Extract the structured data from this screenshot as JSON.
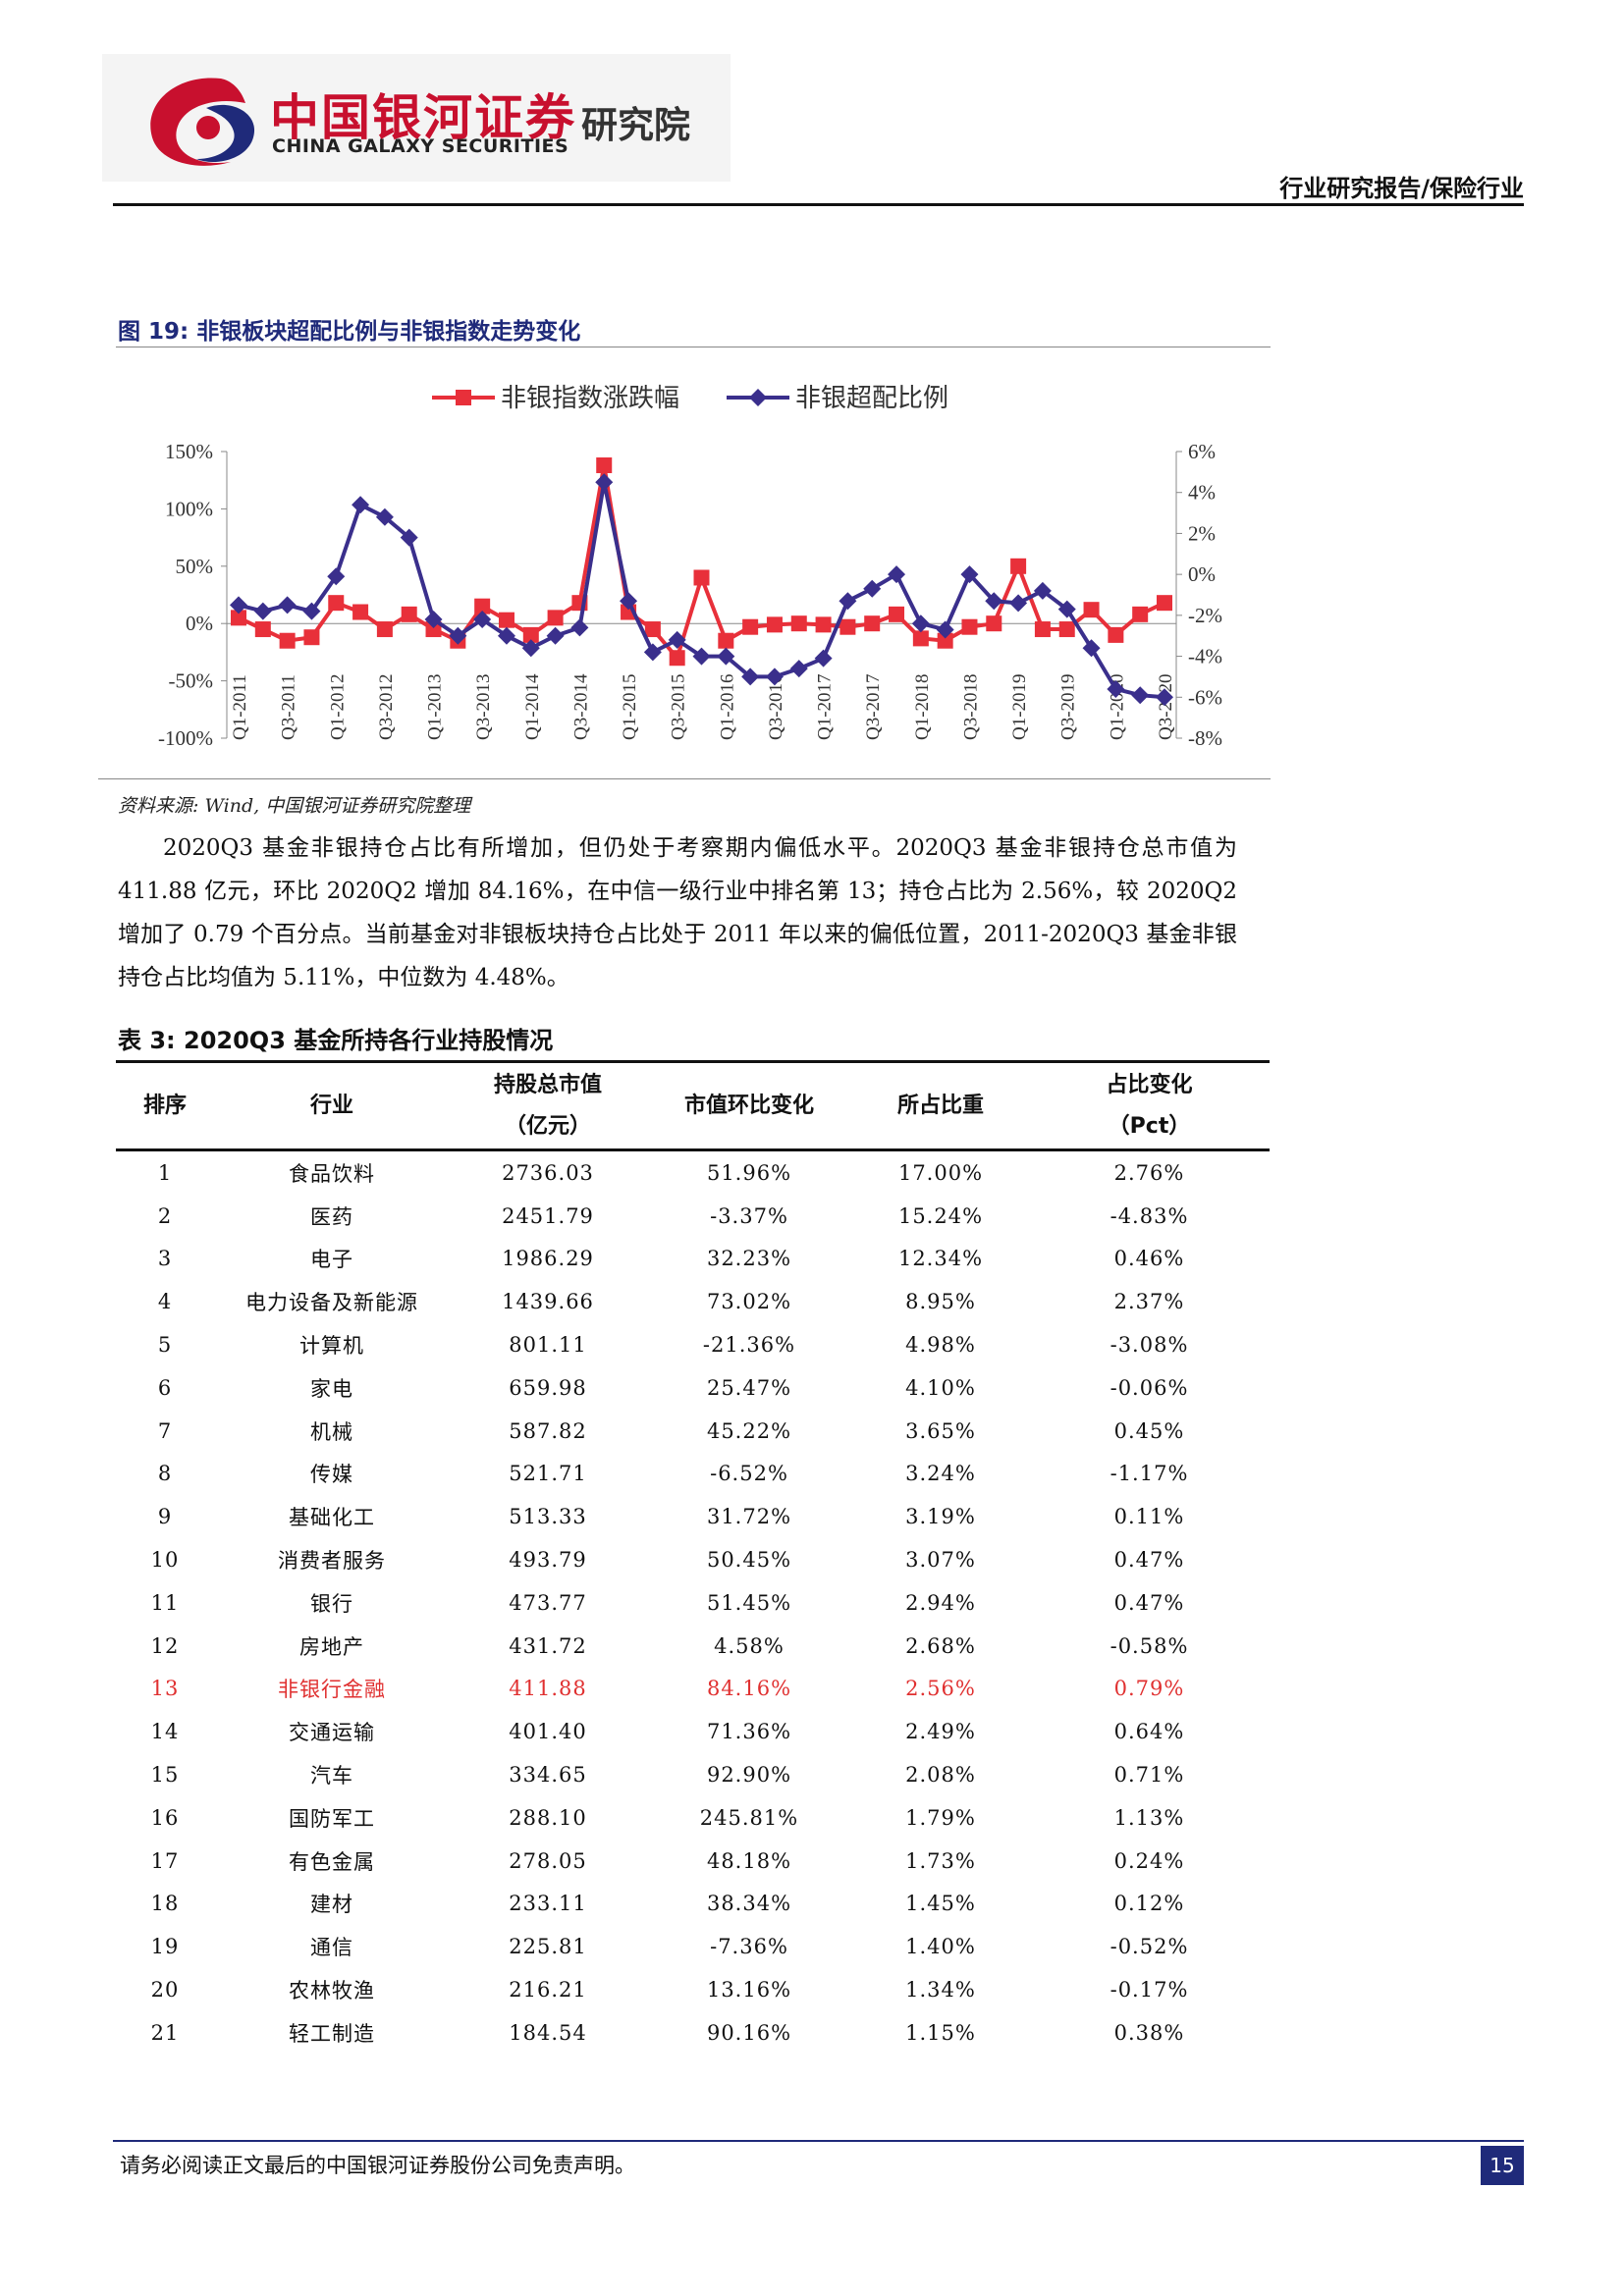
{
  "header": {
    "brand_cn": "中国银河证券",
    "brand_en": "CHINA GALAXY SECURITIES",
    "institute": "研究院",
    "report_type": "行业研究报告/保险行业"
  },
  "figure": {
    "title": "图 19: 非银板块超配比例与非银指数走势变化",
    "source": "资料来源: Wind, 中国银河证券研究院整理"
  },
  "chart_data": {
    "type": "line",
    "categories": [
      "Q1-2011",
      "Q2-2011",
      "Q3-2011",
      "Q4-2011",
      "Q1-2012",
      "Q2-2012",
      "Q3-2012",
      "Q4-2012",
      "Q1-2013",
      "Q2-2013",
      "Q3-2013",
      "Q4-2013",
      "Q1-2014",
      "Q2-2014",
      "Q3-2014",
      "Q4-2014",
      "Q1-2015",
      "Q2-2015",
      "Q3-2015",
      "Q4-2015",
      "Q1-2016",
      "Q2-2016",
      "Q3-2016",
      "Q4-2016",
      "Q1-2017",
      "Q2-2017",
      "Q3-2017",
      "Q4-2017",
      "Q1-2018",
      "Q2-2018",
      "Q3-2018",
      "Q4-2018",
      "Q1-2019",
      "Q2-2019",
      "Q3-2019",
      "Q4-2019",
      "Q1-2020",
      "Q2-2020",
      "Q3-2020"
    ],
    "x_tick_labels": [
      "Q1-2011",
      "Q3-2011",
      "Q1-2012",
      "Q3-2012",
      "Q1-2013",
      "Q3-2013",
      "Q1-2014",
      "Q3-2014",
      "Q1-2015",
      "Q3-2015",
      "Q1-2016",
      "Q3-2016",
      "Q1-2017",
      "Q3-2017",
      "Q1-2018",
      "Q3-2018",
      "Q1-2019",
      "Q3-2019",
      "Q1-2020",
      "Q3-2020"
    ],
    "series": [
      {
        "name": "非银指数涨跌幅",
        "axis": "left",
        "color": "#e8303a",
        "marker": "square",
        "values": [
          5,
          -5,
          -15,
          -12,
          18,
          10,
          -5,
          8,
          -5,
          -15,
          15,
          3,
          -10,
          5,
          18,
          138,
          10,
          -5,
          -30,
          40,
          -15,
          -3,
          -1,
          0,
          -1,
          -3,
          0,
          8,
          -13,
          -15,
          -3,
          0,
          50,
          -5,
          -5,
          12,
          -10,
          8,
          18
        ]
      },
      {
        "name": "非银超配比例",
        "axis": "right",
        "color": "#3a2f8c",
        "marker": "diamond",
        "values": [
          -1.5,
          -1.8,
          -1.5,
          -1.8,
          -0.1,
          3.4,
          2.8,
          1.8,
          -2.2,
          -3.0,
          -2.2,
          -3.0,
          -3.6,
          -3.0,
          -2.6,
          4.5,
          -1.3,
          -3.8,
          -3.2,
          -4.0,
          -4.0,
          -5.0,
          -5.0,
          -4.6,
          -4.1,
          -1.3,
          -0.7,
          0.0,
          -2.4,
          -2.7,
          0.0,
          -1.3,
          -1.4,
          -0.8,
          -1.7,
          -3.6,
          -5.6,
          -5.9,
          -6.0
        ]
      }
    ],
    "y_left": {
      "min": -100,
      "max": 150,
      "ticks": [
        "150%",
        "100%",
        "50%",
        "0%",
        "-50%",
        "-100%"
      ]
    },
    "y_right": {
      "min": -8,
      "max": 6,
      "ticks": [
        "6%",
        "4%",
        "2%",
        "0%",
        "-2%",
        "-4%",
        "-6%",
        "-8%"
      ]
    },
    "legend_position": "top-center",
    "grid": false
  },
  "paragraph": "2020Q3 基金非银持仓占比有所增加，但仍处于考察期内偏低水平。2020Q3 基金非银持仓总市值为 411.88 亿元，环比 2020Q2 增加 84.16%，在中信一级行业中排名第 13；持仓占比为 2.56%，较 2020Q2 增加了 0.79 个百分点。当前基金对非银板块持仓占比处于 2011 年以来的偏低位置，2011-2020Q3 基金非银持仓占比均值为 5.11%，中位数为 4.48%。",
  "table": {
    "title": "表 3: 2020Q3 基金所持各行业持股情况",
    "headers": {
      "rank": "排序",
      "industry": "行业",
      "mv_1": "持股总市值",
      "mv_2": "（亿元）",
      "qoq": "市值环比变化",
      "weight": "所占比重",
      "chg_1": "占比变化",
      "chg_2": "（Pct）"
    },
    "rows": [
      [
        "1",
        "食品饮料",
        "2736.03",
        "51.96%",
        "17.00%",
        "2.76%"
      ],
      [
        "2",
        "医药",
        "2451.79",
        "-3.37%",
        "15.24%",
        "-4.83%"
      ],
      [
        "3",
        "电子",
        "1986.29",
        "32.23%",
        "12.34%",
        "0.46%"
      ],
      [
        "4",
        "电力设备及新能源",
        "1439.66",
        "73.02%",
        "8.95%",
        "2.37%"
      ],
      [
        "5",
        "计算机",
        "801.11",
        "-21.36%",
        "4.98%",
        "-3.08%"
      ],
      [
        "6",
        "家电",
        "659.98",
        "25.47%",
        "4.10%",
        "-0.06%"
      ],
      [
        "7",
        "机械",
        "587.82",
        "45.22%",
        "3.65%",
        "0.45%"
      ],
      [
        "8",
        "传媒",
        "521.71",
        "-6.52%",
        "3.24%",
        "-1.17%"
      ],
      [
        "9",
        "基础化工",
        "513.33",
        "31.72%",
        "3.19%",
        "0.11%"
      ],
      [
        "10",
        "消费者服务",
        "493.79",
        "50.45%",
        "3.07%",
        "0.47%"
      ],
      [
        "11",
        "银行",
        "473.77",
        "51.45%",
        "2.94%",
        "0.47%"
      ],
      [
        "12",
        "房地产",
        "431.72",
        "4.58%",
        "2.68%",
        "-0.58%"
      ],
      [
        "13",
        "非银行金融",
        "411.88",
        "84.16%",
        "2.56%",
        "0.79%"
      ],
      [
        "14",
        "交通运输",
        "401.40",
        "71.36%",
        "2.49%",
        "0.64%"
      ],
      [
        "15",
        "汽车",
        "334.65",
        "92.90%",
        "2.08%",
        "0.71%"
      ],
      [
        "16",
        "国防军工",
        "288.10",
        "245.81%",
        "1.79%",
        "1.13%"
      ],
      [
        "17",
        "有色金属",
        "278.05",
        "48.18%",
        "1.73%",
        "0.24%"
      ],
      [
        "18",
        "建材",
        "233.11",
        "38.34%",
        "1.45%",
        "0.12%"
      ],
      [
        "19",
        "通信",
        "225.81",
        "-7.36%",
        "1.40%",
        "-0.52%"
      ],
      [
        "20",
        "农林牧渔",
        "216.21",
        "13.16%",
        "1.34%",
        "-0.17%"
      ],
      [
        "21",
        "轻工制造",
        "184.54",
        "90.16%",
        "1.15%",
        "0.38%"
      ]
    ],
    "highlight_row": "13",
    "highlight_color": "#e03030"
  },
  "footer": {
    "disclaimer": "请务必阅读正文最后的中国银河证券股份公司免责声明。",
    "page_number": "15"
  }
}
